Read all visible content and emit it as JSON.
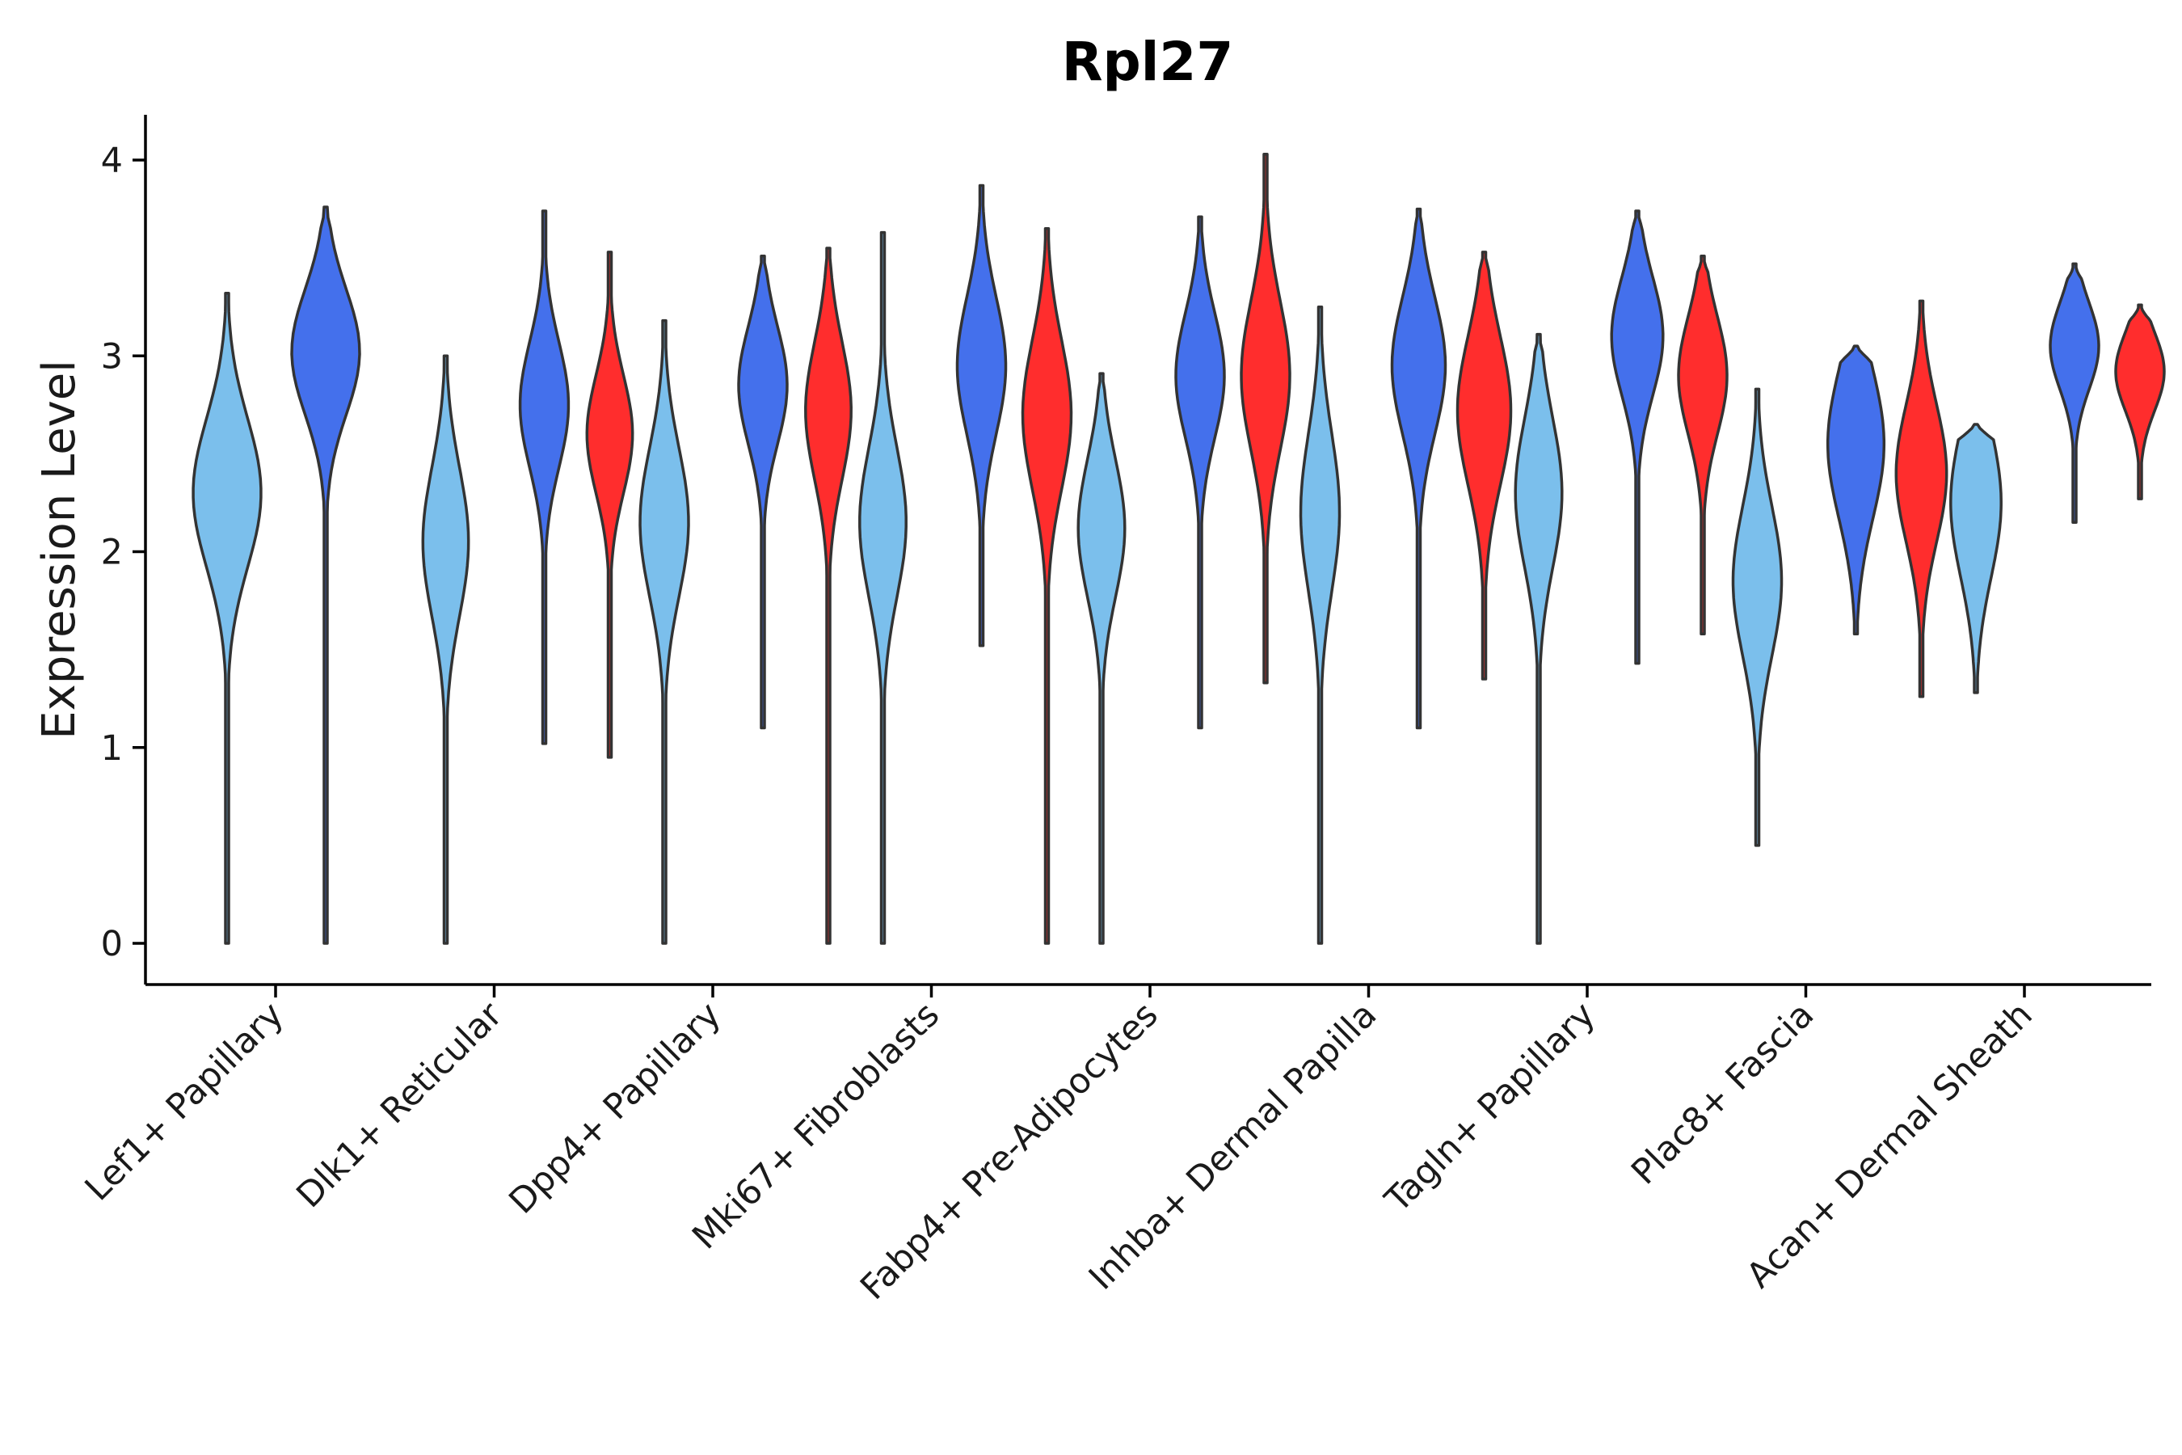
{
  "chart_data": {
    "type": "violin",
    "title": "Rpl27",
    "xlabel": "",
    "ylabel": "Expression Level",
    "ylim": [
      -0.2,
      4.2
    ],
    "yticks": [
      0,
      1,
      2,
      3,
      4
    ],
    "categories": [
      "Lef1+ Papillary",
      "Dlk1+ Reticular",
      "Dpp4+ Papillary",
      "Mki67+ Fibroblasts",
      "Fabp4+ Pre-Adipocytes",
      "Inhba+ Dermal Papilla",
      "Tagln+ Papillary",
      "Plac8+ Fascia",
      "Acan+ Dermal Sheath"
    ],
    "groups": [
      {
        "name": "group 1",
        "color": "#7bbfec"
      },
      {
        "name": "group 2",
        "color": "#4470ec"
      },
      {
        "name": "group 3",
        "color": "#ff2d2d"
      }
    ],
    "violins": [
      {
        "category": 0,
        "group": 0,
        "min": 0.0,
        "max": 3.32,
        "mode": 2.3,
        "spread": 0.38,
        "width": 0.7
      },
      {
        "category": 0,
        "group": 1,
        "min": 0.0,
        "max": 3.76,
        "mode": 3.02,
        "spread": 0.32,
        "width": 0.7
      },
      {
        "category": 1,
        "group": 0,
        "min": 0.0,
        "max": 3.0,
        "mode": 2.05,
        "spread": 0.38,
        "width": 0.47
      },
      {
        "category": 1,
        "group": 1,
        "min": 1.02,
        "max": 3.74,
        "mode": 2.75,
        "spread": 0.32,
        "width": 0.5
      },
      {
        "category": 1,
        "group": 2,
        "min": 0.95,
        "max": 3.53,
        "mode": 2.6,
        "spread": 0.3,
        "width": 0.47
      },
      {
        "category": 2,
        "group": 0,
        "min": 0.0,
        "max": 3.18,
        "mode": 2.15,
        "spread": 0.38,
        "width": 0.5
      },
      {
        "category": 2,
        "group": 1,
        "min": 1.1,
        "max": 3.51,
        "mode": 2.85,
        "spread": 0.3,
        "width": 0.5
      },
      {
        "category": 2,
        "group": 2,
        "min": 0.0,
        "max": 3.55,
        "mode": 2.72,
        "spread": 0.35,
        "width": 0.47
      },
      {
        "category": 3,
        "group": 0,
        "min": 0.0,
        "max": 3.63,
        "mode": 2.15,
        "spread": 0.38,
        "width": 0.48
      },
      {
        "category": 3,
        "group": 1,
        "min": 1.52,
        "max": 3.87,
        "mode": 2.95,
        "spread": 0.35,
        "width": 0.5
      },
      {
        "category": 3,
        "group": 2,
        "min": 0.0,
        "max": 3.65,
        "mode": 2.7,
        "spread": 0.38,
        "width": 0.5
      },
      {
        "category": 4,
        "group": 0,
        "min": 0.0,
        "max": 2.91,
        "mode": 2.12,
        "spread": 0.35,
        "width": 0.48
      },
      {
        "category": 4,
        "group": 1,
        "min": 1.1,
        "max": 3.71,
        "mode": 2.9,
        "spread": 0.32,
        "width": 0.5
      },
      {
        "category": 4,
        "group": 2,
        "min": 1.33,
        "max": 4.03,
        "mode": 2.9,
        "spread": 0.38,
        "width": 0.5
      },
      {
        "category": 5,
        "group": 0,
        "min": 0.0,
        "max": 3.25,
        "mode": 2.2,
        "spread": 0.4,
        "width": 0.4
      },
      {
        "category": 5,
        "group": 1,
        "min": 1.1,
        "max": 3.75,
        "mode": 2.95,
        "spread": 0.35,
        "width": 0.55
      },
      {
        "category": 5,
        "group": 2,
        "min": 1.35,
        "max": 3.53,
        "mode": 2.72,
        "spread": 0.38,
        "width": 0.55
      },
      {
        "category": 6,
        "group": 0,
        "min": 0.0,
        "max": 3.11,
        "mode": 2.3,
        "spread": 0.38,
        "width": 0.48
      },
      {
        "category": 6,
        "group": 1,
        "min": 1.43,
        "max": 3.74,
        "mode": 3.1,
        "spread": 0.3,
        "width": 0.53
      },
      {
        "category": 6,
        "group": 2,
        "min": 1.58,
        "max": 3.51,
        "mode": 2.9,
        "spread": 0.3,
        "width": 0.5
      },
      {
        "category": 7,
        "group": 0,
        "min": 0.5,
        "max": 2.83,
        "mode": 1.85,
        "spread": 0.38,
        "width": 0.5
      },
      {
        "category": 7,
        "group": 1,
        "min": 1.58,
        "max": 3.05,
        "mode": 2.55,
        "spread": 0.38,
        "width": 0.58
      },
      {
        "category": 7,
        "group": 2,
        "min": 1.26,
        "max": 3.28,
        "mode": 2.4,
        "spread": 0.35,
        "width": 0.52
      },
      {
        "category": 8,
        "group": 0,
        "min": 1.28,
        "max": 2.65,
        "mode": 2.25,
        "spread": 0.38,
        "width": 0.52
      },
      {
        "category": 8,
        "group": 1,
        "min": 2.15,
        "max": 3.47,
        "mode": 3.05,
        "spread": 0.22,
        "width": 0.5
      },
      {
        "category": 8,
        "group": 2,
        "min": 2.27,
        "max": 3.26,
        "mode": 2.92,
        "spread": 0.2,
        "width": 0.5
      }
    ]
  }
}
